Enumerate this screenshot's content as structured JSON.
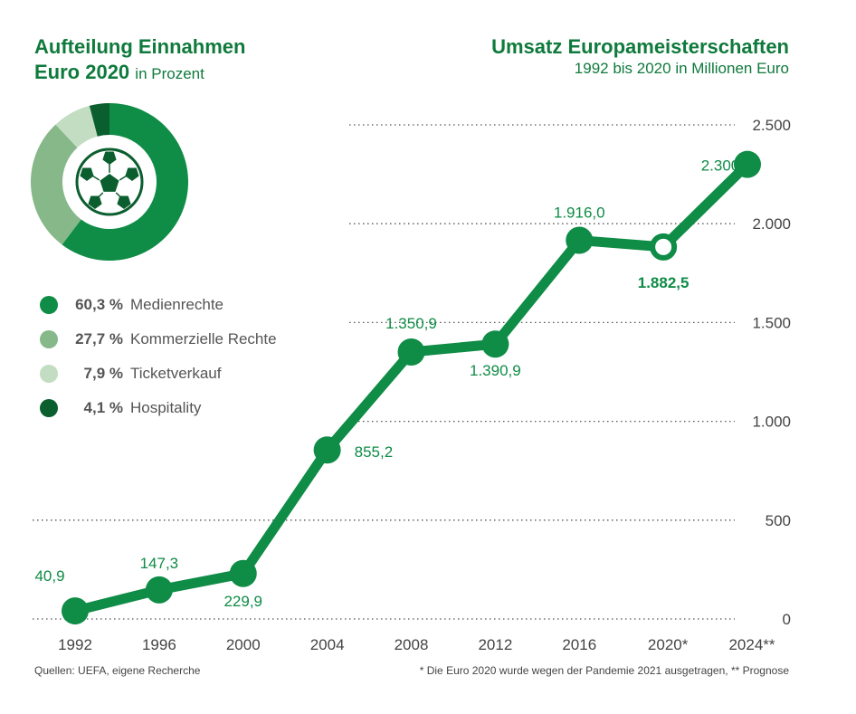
{
  "pie": {
    "title_line1": "Aufteilung Einnahmen",
    "title_line2": "Euro 2020",
    "title_suffix": "in Prozent"
  },
  "line": {
    "title": "Umsatz Europameisterschaften",
    "subtitle": "1992 bis 2020 in Millionen Euro"
  },
  "footer": {
    "source": "Quellen: UEFA, eigene Recherche",
    "note": "* Die Euro 2020 wurde wegen der Pandemie 2021 ausgetragen, ** Prognose"
  },
  "colors": {
    "accent": "#0f8c46",
    "dark": "#0b5e2e",
    "medium": "#86b889",
    "light": "#c3ddc3",
    "grid": "#555555"
  },
  "chart_data": [
    {
      "type": "pie",
      "title": "Aufteilung Einnahmen Euro 2020",
      "subtitle": "in Prozent",
      "slices": [
        {
          "label": "Medienrechte",
          "value": 60.3,
          "display": "60,3 %",
          "color": "#0f8c46"
        },
        {
          "label": "Kommerzielle Rechte",
          "value": 27.7,
          "display": "27,7 %",
          "color": "#86b889"
        },
        {
          "label": "Ticketverkauf",
          "value": 7.9,
          "display": "7,9 %",
          "color": "#c3ddc3"
        },
        {
          "label": "Hospitality",
          "value": 4.1,
          "display": "4,1 %",
          "color": "#0b5e2e"
        }
      ],
      "legend_position": "below"
    },
    {
      "type": "line",
      "title": "Umsatz Europameisterschaften",
      "subtitle": "1992 bis 2020 in Millionen Euro",
      "categories": [
        "1992",
        "1996",
        "2000",
        "2004",
        "2008",
        "2012",
        "2016",
        "2020*",
        "2024**"
      ],
      "values": [
        40.9,
        147.3,
        229.9,
        855.2,
        1350.9,
        1390.9,
        1916.0,
        1882.5,
        2300
      ],
      "value_labels": [
        "40,9",
        "147,3",
        "229,9",
        "855,2",
        "1.350,9",
        "1.390,9",
        "1.916,0",
        "1.882,5",
        "2.300"
      ],
      "highlight_index": 7,
      "ylim": [
        0,
        2500
      ],
      "yticks": [
        0,
        500,
        1000,
        1500,
        2000,
        2500
      ],
      "ytick_labels": [
        "0",
        "500",
        "1.000",
        "1.500",
        "2.000",
        "2.500"
      ],
      "grid": true,
      "xlabel": "",
      "ylabel": ""
    }
  ]
}
